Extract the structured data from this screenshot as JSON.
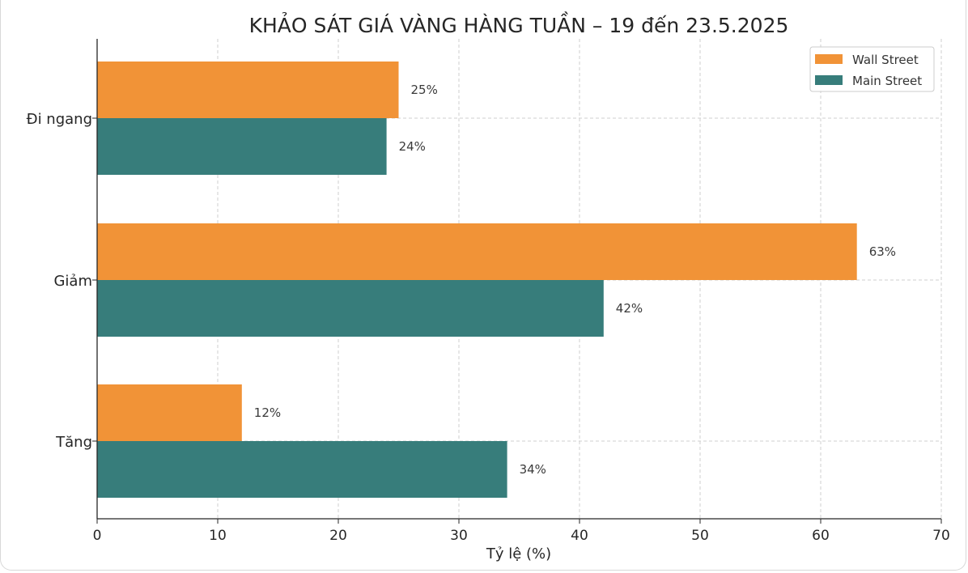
{
  "chart_data": {
    "type": "bar",
    "orientation": "horizontal",
    "title": "KHẢO SÁT GIÁ VÀNG HÀNG TUẦN – 19 đến 23.5.2025",
    "xlabel": "Tỷ lệ (%)",
    "ylabel": "",
    "categories": [
      "Đi ngang",
      "Giảm",
      "Tăng"
    ],
    "series": [
      {
        "name": "Wall Street",
        "color": "#f19337",
        "values": [
          25,
          63,
          12
        ],
        "labels": [
          "25%",
          "63%",
          "12%"
        ]
      },
      {
        "name": "Main Street",
        "color": "#377d7b",
        "values": [
          24,
          42,
          34
        ],
        "labels": [
          "24%",
          "42%",
          "34%"
        ]
      }
    ],
    "xlim": [
      0,
      70
    ],
    "xticks": [
      "0",
      "10",
      "20",
      "30",
      "40",
      "50",
      "60",
      "70"
    ],
    "grid": true,
    "legend_position": "top-right"
  }
}
